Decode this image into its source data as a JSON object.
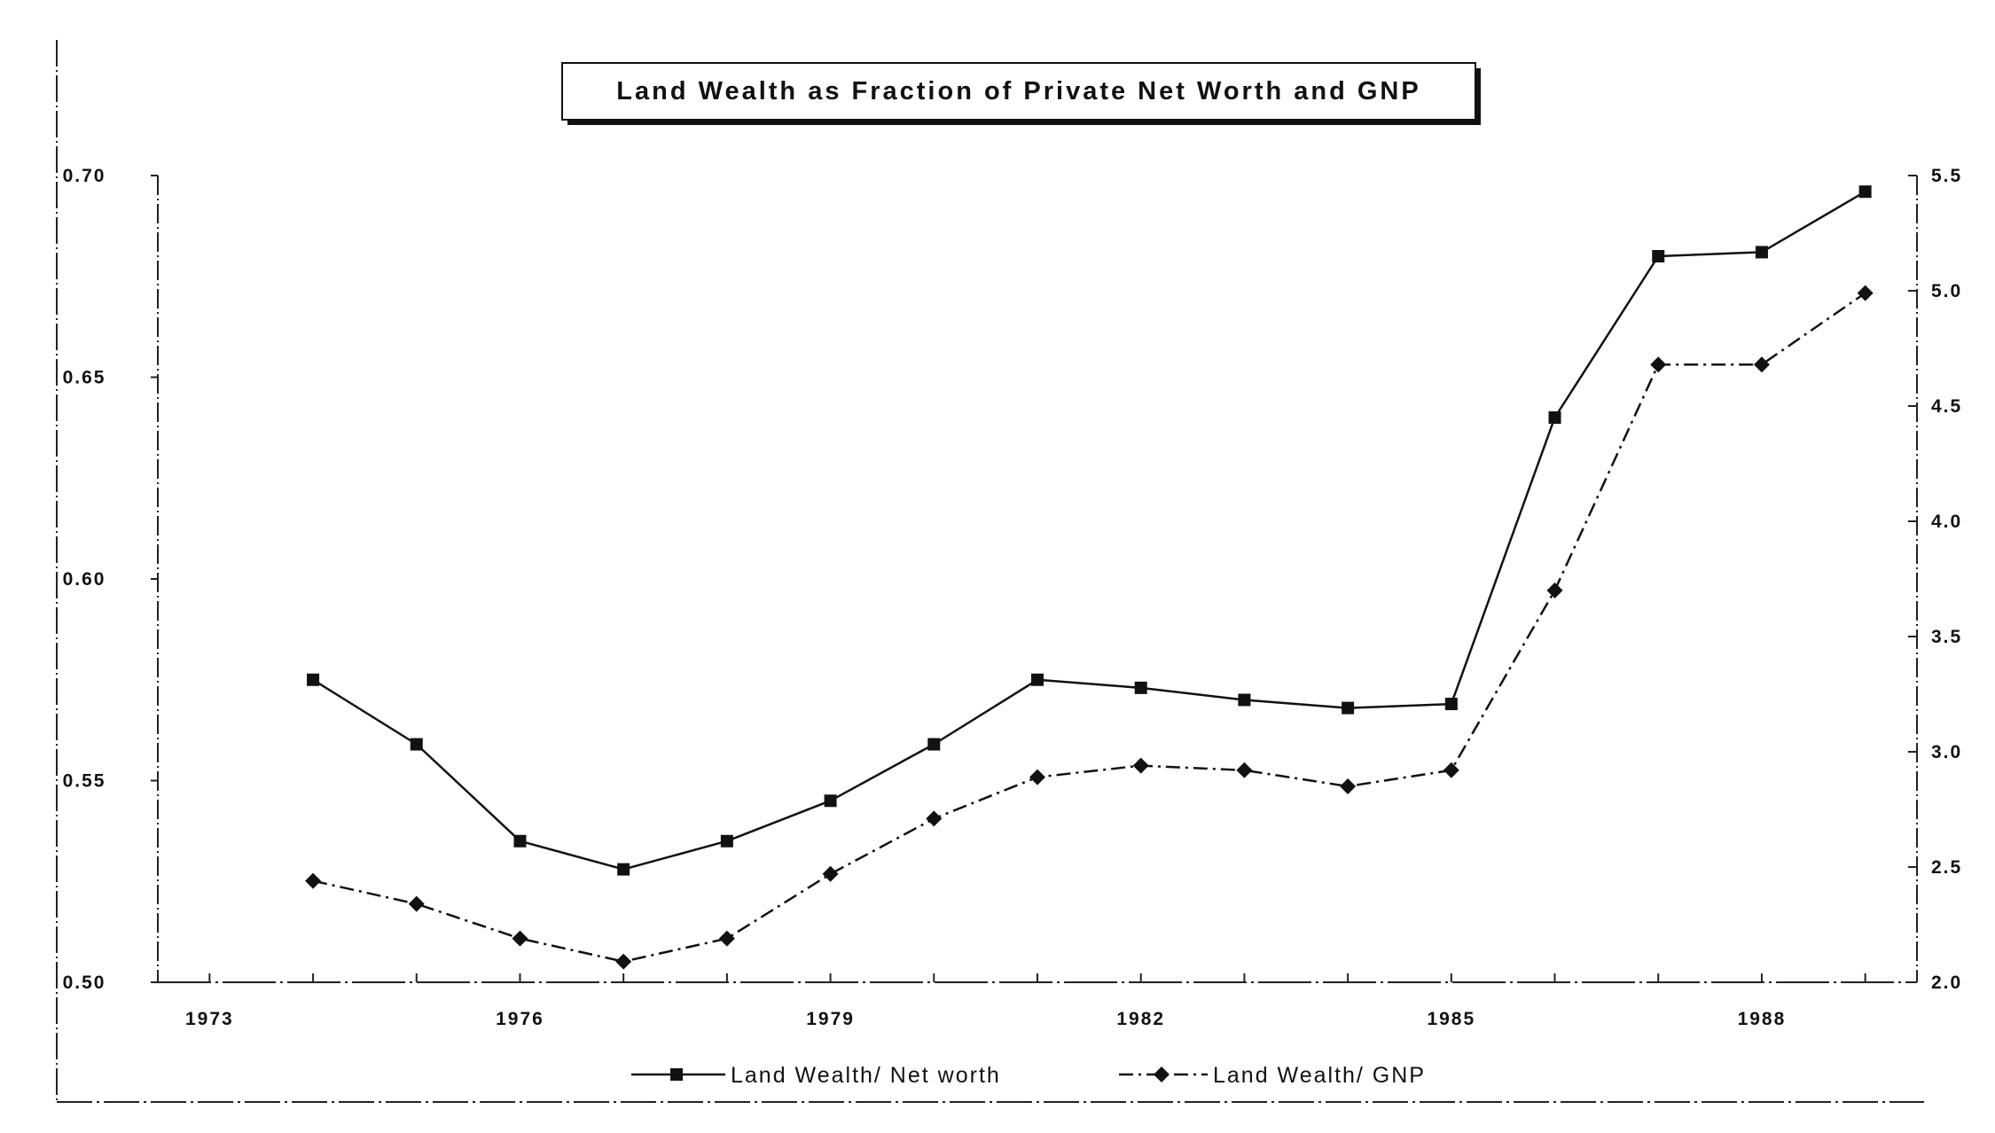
{
  "chart_data": {
    "type": "line",
    "title": "Land Wealth as Fraction of Private Net Worth and GNP",
    "xlabel": "",
    "ylabel": "",
    "y2label": "",
    "x": [
      1974,
      1975,
      1976,
      1977,
      1978,
      1979,
      1980,
      1981,
      1982,
      1983,
      1984,
      1985,
      1986,
      1987,
      1988,
      1989
    ],
    "x_ticks": [
      1973,
      1976,
      1979,
      1982,
      1985,
      1988
    ],
    "x_tick_labels": [
      "1973",
      "1976",
      "1979",
      "1982",
      "1985",
      "1988"
    ],
    "xlim": [
      1972.5,
      1989.5
    ],
    "ylim": [
      0.5,
      0.7
    ],
    "y_ticks": [
      0.5,
      0.55,
      0.6,
      0.65,
      0.7
    ],
    "y_tick_labels": [
      "0.50",
      "0.55",
      "0.60",
      "0.65",
      "0.70"
    ],
    "y2lim": [
      2.0,
      5.5
    ],
    "y2_ticks": [
      2.0,
      2.5,
      3.0,
      3.5,
      4.0,
      4.5,
      5.0,
      5.5
    ],
    "y2_tick_labels": [
      "2.0",
      "2.5",
      "3.0",
      "3.5",
      "4.0",
      "4.5",
      "5.0",
      "5.5"
    ],
    "grid": false,
    "legend_position": "bottom",
    "series": [
      {
        "name": "Land Wealth/ Net worth",
        "axis": "left",
        "marker": "square",
        "line_style": "solid",
        "values": [
          0.575,
          0.559,
          0.535,
          0.528,
          0.535,
          0.545,
          0.559,
          0.575,
          0.573,
          0.57,
          0.568,
          0.569,
          0.64,
          0.68,
          0.681,
          0.696
        ]
      },
      {
        "name": "Land Wealth/ GNP",
        "axis": "right",
        "marker": "diamond",
        "line_style": "dash-dot",
        "values": [
          2.44,
          2.34,
          2.19,
          2.09,
          2.19,
          2.47,
          2.71,
          2.89,
          2.94,
          2.92,
          2.85,
          2.92,
          3.7,
          4.68,
          4.68,
          4.99
        ]
      }
    ]
  },
  "colors": {
    "line": "#111111",
    "background": "#ffffff",
    "frame": "#222222"
  }
}
